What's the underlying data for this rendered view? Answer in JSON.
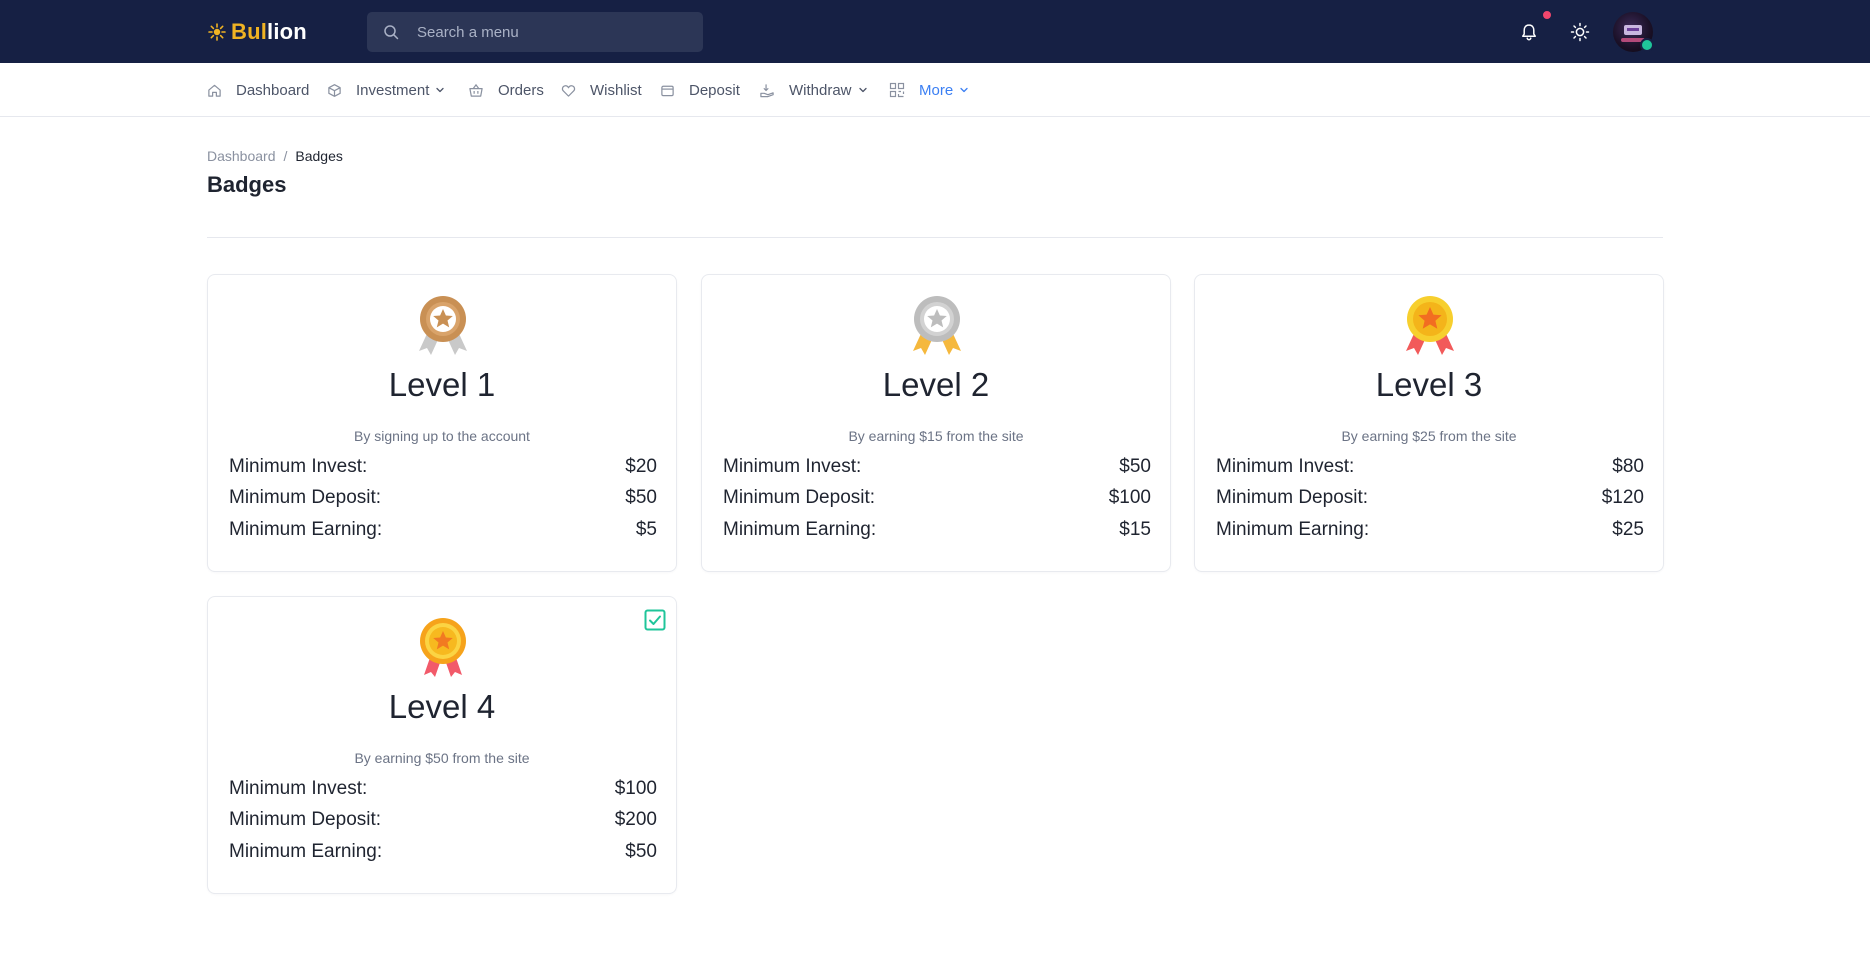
{
  "app": {
    "logo_part1": "Bul",
    "logo_part2": "lion"
  },
  "search": {
    "placeholder": "Search a menu"
  },
  "nav": {
    "dashboard": "Dashboard",
    "investment": "Investment",
    "orders": "Orders",
    "wishlist": "Wishlist",
    "deposit": "Deposit",
    "withdraw": "Withdraw",
    "more": "More"
  },
  "breadcrumb": {
    "home": "Dashboard",
    "separator": "/",
    "current": "Badges"
  },
  "page": {
    "title": "Badges"
  },
  "labels": {
    "min_invest": "Minimum Invest:",
    "min_deposit": "Minimum Deposit:",
    "min_earning": "Minimum Earning:"
  },
  "badges": [
    {
      "level": "Level 1",
      "description": "By signing up to the account",
      "min_invest": "$20",
      "min_deposit": "$50",
      "min_earning": "$5",
      "medal": "bronze-medal-icon",
      "achieved": false
    },
    {
      "level": "Level 2",
      "description": "By earning $15 from the site",
      "min_invest": "$50",
      "min_deposit": "$100",
      "min_earning": "$15",
      "medal": "silver-medal-icon",
      "achieved": false
    },
    {
      "level": "Level 3",
      "description": "By earning $25 from the site",
      "min_invest": "$80",
      "min_deposit": "$120",
      "min_earning": "$25",
      "medal": "gold-medal-icon",
      "achieved": false
    },
    {
      "level": "Level 4",
      "description": "By earning $50 from the site",
      "min_invest": "$100",
      "min_deposit": "$200",
      "min_earning": "$50",
      "medal": "gold-medal-icon",
      "achieved": true
    }
  ],
  "colors": {
    "topbar": "#162044",
    "accent": "#3b7ff3",
    "logo_gold": "#f0b323",
    "notification_dot": "#f0466d",
    "online_status": "#1fc59a",
    "achieved_check": "#1fc59a"
  }
}
